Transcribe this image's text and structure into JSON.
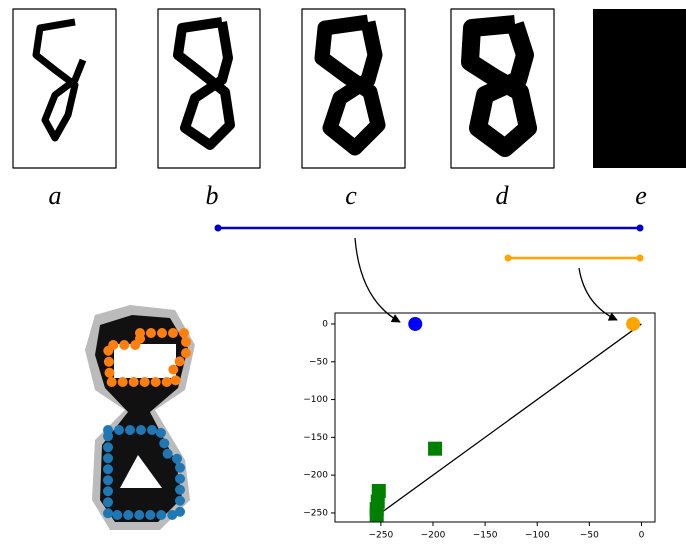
{
  "panel_labels": [
    "a",
    "b",
    "c",
    "d",
    "e"
  ],
  "bars": [
    {
      "color": "#0000cc",
      "birth": 1,
      "death": 4
    },
    {
      "color": "orange",
      "birth": 3,
      "death": 4
    }
  ],
  "chart_data": {
    "type": "scatter",
    "xlim": [
      -294,
      13
    ],
    "ylim": [
      -262,
      14.5
    ],
    "xticks": [
      {
        "value": -250,
        "label": "−250"
      },
      {
        "value": -200,
        "label": "−200"
      },
      {
        "value": -150,
        "label": "−150"
      },
      {
        "value": -100,
        "label": "−100"
      },
      {
        "value": -50,
        "label": "−50"
      },
      0
    ],
    "yticks": [
      0,
      {
        "value": -50,
        "label": "−50"
      },
      {
        "value": -100,
        "label": "−100"
      },
      {
        "value": -150,
        "label": "−150"
      },
      {
        "value": -200,
        "label": "−200"
      },
      {
        "value": -250,
        "label": "−250"
      }
    ],
    "series": [
      {
        "marker": "circle",
        "color": "#0000ff",
        "x": [
          -217
        ],
        "y": [
          0
        ]
      },
      {
        "marker": "circle",
        "color": "orange",
        "x": [
          -8
        ],
        "y": [
          0
        ]
      },
      {
        "marker": "square",
        "color": "green",
        "x": [
          -198,
          -252,
          -253,
          -254,
          -254
        ],
        "y": [
          -165,
          -221,
          -235,
          -245,
          -252
        ]
      }
    ],
    "lines": [
      {
        "color": "black",
        "x": [
          -254,
          0
        ],
        "y": [
          -254,
          0
        ]
      }
    ]
  }
}
